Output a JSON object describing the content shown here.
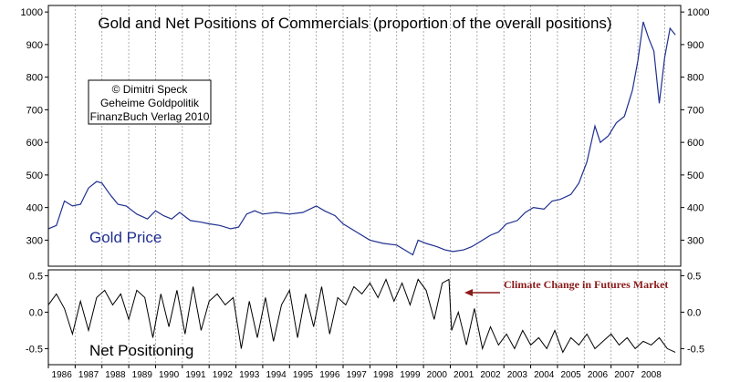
{
  "colors": {
    "gold_line": "#1f2f8f",
    "net_line": "#000000",
    "annotation": "#8b1a1a",
    "grid": "#9a9a9a",
    "frame": "#000000"
  },
  "credit_box": {
    "line1": "© Dimitri Speck",
    "line2": "Geheime Goldpolitik",
    "line3": "FinanzBuch Verlag 2010"
  },
  "chart_data": [
    {
      "type": "line",
      "title": "Gold and Net Positions of Commercials (proportion of the overall positions)",
      "panel_label": "Gold Price",
      "x_categories": [
        "1986",
        "1987",
        "1988",
        "1989",
        "1990",
        "1991",
        "1992",
        "1993",
        "1994",
        "1995",
        "1996",
        "1997",
        "1998",
        "1999",
        "2000",
        "2001",
        "2002",
        "2003",
        "2004",
        "2005",
        "2006",
        "2007",
        "2008"
      ],
      "xlim": [
        1986.0,
        2009.6
      ],
      "ylim": [
        220,
        1020
      ],
      "yticks": [
        "300",
        "400",
        "500",
        "600",
        "700",
        "800",
        "900",
        "1000"
      ],
      "ytick_values": [
        300,
        400,
        500,
        600,
        700,
        800,
        900,
        1000
      ],
      "grid": "vertical dashed at years",
      "series": [
        {
          "name": "Gold Price",
          "x": [
            1986.0,
            1986.3,
            1986.6,
            1986.9,
            1987.2,
            1987.5,
            1987.8,
            1988.0,
            1988.3,
            1988.6,
            1988.9,
            1989.3,
            1989.7,
            1990.0,
            1990.3,
            1990.6,
            1990.9,
            1991.3,
            1991.7,
            1992.0,
            1992.4,
            1992.8,
            1993.1,
            1993.4,
            1993.7,
            1994.0,
            1994.5,
            1995.0,
            1995.5,
            1996.0,
            1996.3,
            1996.7,
            1997.0,
            1997.5,
            1998.0,
            1998.5,
            1999.0,
            1999.3,
            1999.6,
            1999.8,
            2000.1,
            2000.5,
            2000.8,
            2001.1,
            2001.5,
            2001.8,
            2002.1,
            2002.5,
            2002.8,
            2003.1,
            2003.5,
            2003.8,
            2004.1,
            2004.5,
            2004.8,
            2005.1,
            2005.5,
            2005.8,
            2006.1,
            2006.4,
            2006.6,
            2006.9,
            2007.2,
            2007.5,
            2007.8,
            2008.0,
            2008.2,
            2008.4,
            2008.6,
            2008.8,
            2009.0,
            2009.2,
            2009.4
          ],
          "y": [
            335,
            345,
            420,
            405,
            410,
            460,
            480,
            475,
            440,
            410,
            405,
            380,
            365,
            390,
            375,
            365,
            385,
            360,
            355,
            350,
            345,
            335,
            340,
            380,
            390,
            380,
            385,
            380,
            385,
            405,
            390,
            375,
            350,
            325,
            300,
            290,
            285,
            270,
            255,
            300,
            290,
            280,
            270,
            265,
            270,
            280,
            295,
            315,
            325,
            350,
            360,
            385,
            400,
            395,
            420,
            425,
            440,
            475,
            540,
            650,
            600,
            620,
            660,
            680,
            760,
            850,
            970,
            920,
            880,
            720,
            860,
            950,
            930
          ]
        }
      ]
    },
    {
      "type": "line",
      "title": "",
      "panel_label": "Net Positioning",
      "annotation": "Climate Change in Futures Market",
      "annotation_at": {
        "x": 2001.0,
        "y": 0.28
      },
      "xlim": [
        1986.0,
        2009.6
      ],
      "ylim": [
        -0.72,
        0.58
      ],
      "yticks": [
        "0.5",
        "0.0",
        "-0.5"
      ],
      "ytick_values": [
        0.5,
        0.0,
        -0.5
      ],
      "series": [
        {
          "name": "Net Positioning",
          "x": [
            1986.0,
            1986.3,
            1986.6,
            1986.9,
            1987.2,
            1987.5,
            1987.8,
            1988.1,
            1988.4,
            1988.7,
            1989.0,
            1989.3,
            1989.6,
            1989.9,
            1990.2,
            1990.5,
            1990.8,
            1991.1,
            1991.4,
            1991.7,
            1992.0,
            1992.3,
            1992.6,
            1992.9,
            1993.2,
            1993.5,
            1993.8,
            1994.1,
            1994.4,
            1994.7,
            1995.0,
            1995.3,
            1995.6,
            1995.9,
            1996.2,
            1996.5,
            1996.8,
            1997.1,
            1997.4,
            1997.7,
            1998.0,
            1998.3,
            1998.6,
            1998.9,
            1999.2,
            1999.5,
            1999.8,
            2000.1,
            2000.4,
            2000.7,
            2000.95,
            2001.05,
            2001.3,
            2001.6,
            2001.9,
            2002.2,
            2002.5,
            2002.8,
            2003.1,
            2003.4,
            2003.7,
            2004.0,
            2004.3,
            2004.6,
            2004.9,
            2005.2,
            2005.5,
            2005.8,
            2006.1,
            2006.4,
            2006.7,
            2007.0,
            2007.3,
            2007.6,
            2007.9,
            2008.2,
            2008.5,
            2008.8,
            2009.1,
            2009.4
          ],
          "y": [
            0.1,
            0.25,
            0.05,
            -0.3,
            0.15,
            -0.25,
            0.2,
            0.3,
            0.1,
            0.25,
            -0.1,
            0.3,
            0.2,
            -0.35,
            0.25,
            -0.2,
            0.3,
            -0.3,
            0.35,
            -0.25,
            0.15,
            0.25,
            0.1,
            0.2,
            -0.5,
            0.15,
            -0.35,
            0.2,
            -0.4,
            0.1,
            0.3,
            -0.35,
            0.25,
            -0.2,
            0.35,
            -0.3,
            0.2,
            0.1,
            0.35,
            0.25,
            0.4,
            0.2,
            0.45,
            0.15,
            0.4,
            0.1,
            0.45,
            0.3,
            -0.1,
            0.4,
            0.45,
            -0.25,
            0.0,
            -0.45,
            0.05,
            -0.5,
            -0.2,
            -0.45,
            -0.3,
            -0.5,
            -0.25,
            -0.45,
            -0.35,
            -0.5,
            -0.25,
            -0.55,
            -0.35,
            -0.45,
            -0.3,
            -0.5,
            -0.4,
            -0.3,
            -0.45,
            -0.35,
            -0.5,
            -0.4,
            -0.45,
            -0.35,
            -0.5,
            -0.55
          ]
        }
      ]
    }
  ]
}
